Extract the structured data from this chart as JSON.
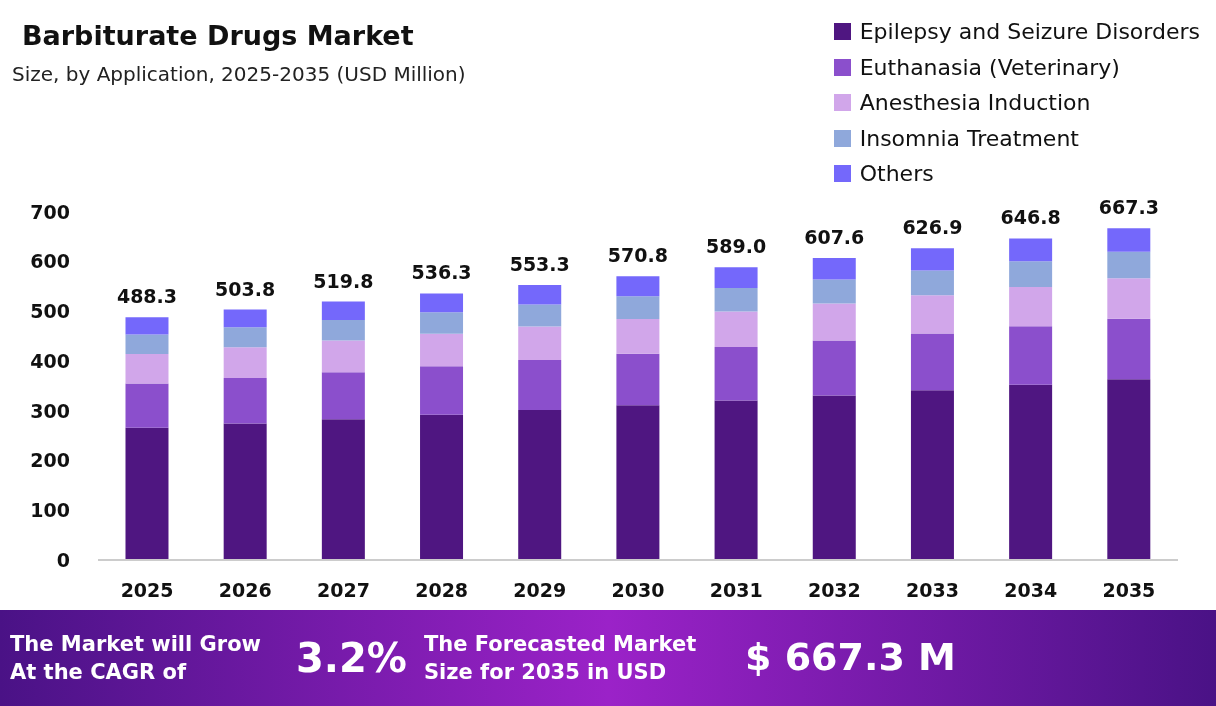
{
  "chart_data": {
    "type": "bar",
    "stacked": true,
    "title": "Barbiturate Drugs Market",
    "subtitle": "Size, by Application, 2025-2035 (USD Million)",
    "categories": [
      "2025",
      "2026",
      "2027",
      "2028",
      "2029",
      "2030",
      "2031",
      "2032",
      "2033",
      "2034",
      "2035"
    ],
    "series": [
      {
        "name": "Epilepsy and Seizure Disorders",
        "color": "#4f1681",
        "values": [
          266.1,
          274.6,
          283.3,
          292.3,
          301.5,
          311.1,
          321.0,
          331.1,
          341.7,
          352.5,
          363.7
        ]
      },
      {
        "name": "Euthanasia (Veterinary)",
        "color": "#8b4fcc",
        "values": [
          88.9,
          91.7,
          94.6,
          97.6,
          100.7,
          103.9,
          107.2,
          110.6,
          114.1,
          117.7,
          121.4
        ]
      },
      {
        "name": "Anesthesia Induction",
        "color": "#d1a6ea",
        "values": [
          59.6,
          61.5,
          63.4,
          65.4,
          67.5,
          69.6,
          71.9,
          74.1,
          76.5,
          78.9,
          81.4
        ]
      },
      {
        "name": "Insomnia Treatment",
        "color": "#8fa8db",
        "values": [
          39.1,
          40.3,
          41.6,
          42.9,
          44.3,
          45.7,
          47.1,
          48.6,
          50.2,
          51.7,
          53.4
        ]
      },
      {
        "name": "Others",
        "color": "#7468fb",
        "values": [
          34.6,
          35.7,
          36.9,
          38.1,
          39.3,
          40.5,
          41.8,
          43.2,
          44.4,
          46.0,
          47.4
        ]
      }
    ],
    "totals": [
      "488.3",
      "503.8",
      "519.8",
      "536.3",
      "553.3",
      "570.8",
      "589.0",
      "607.6",
      "626.9",
      "646.8",
      "667.3"
    ],
    "ylim": [
      0,
      700
    ],
    "yticks": [
      0,
      100,
      200,
      300,
      400,
      500,
      600,
      700
    ],
    "grid": false,
    "legend": "top right",
    "annotations": [
      "The Market will Grow At the CAGR of",
      "3.2%",
      "The Forecasted Market Size for 2035 in USD",
      "$ 667.3 M"
    ]
  }
}
